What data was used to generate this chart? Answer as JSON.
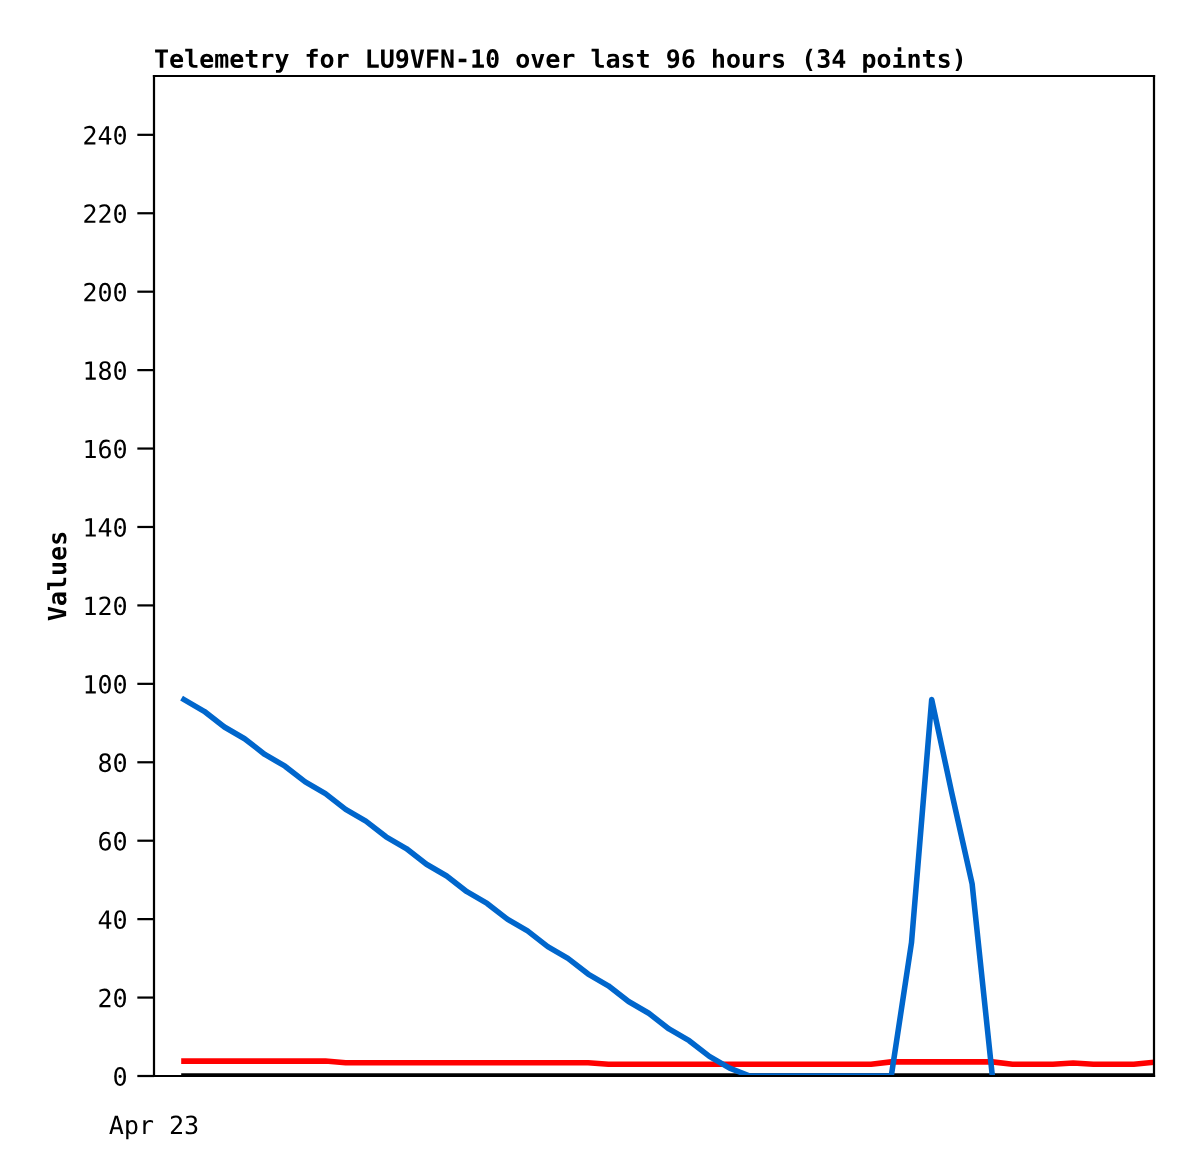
{
  "chart_data": {
    "type": "line",
    "title": "Telemetry for LU9VFN-10 over last 96 hours (34 points)",
    "ylabel": "Values",
    "annotations": [
      "Apr 23"
    ],
    "categories": [
      null,
      null,
      null,
      null,
      null,
      null,
      null,
      null,
      null,
      null,
      null,
      null,
      null,
      null,
      null,
      null,
      null,
      null,
      null,
      null,
      null,
      null,
      null,
      null,
      null,
      null,
      null,
      null,
      null,
      null,
      null,
      null,
      null,
      null,
      null,
      null,
      null,
      null,
      null,
      null,
      null,
      null,
      null,
      null,
      null,
      null,
      null,
      null,
      null
    ],
    "ylim": [
      0,
      255
    ],
    "yticks": [
      0,
      20,
      40,
      60,
      80,
      100,
      120,
      140,
      160,
      180,
      200,
      220,
      240
    ],
    "grid": false,
    "legend": false,
    "marker": "none",
    "line_style": "solid",
    "series": [
      {
        "color": "#ff0000",
        "values": [
          3.8,
          3.8,
          3.8,
          3.8,
          3.8,
          3.8,
          3.8,
          3.8,
          3.4,
          3.4,
          3.4,
          3.4,
          3.4,
          3.4,
          3.4,
          3.4,
          3.4,
          3.4,
          3.4,
          3.4,
          3.4,
          3.0,
          3.0,
          3.0,
          3.0,
          3.0,
          3.0,
          3.0,
          3.0,
          3.0,
          3.0,
          3.0,
          3.0,
          3.0,
          3.0,
          3.6,
          3.6,
          3.6,
          3.6,
          3.6,
          3.6,
          3.0,
          3.0,
          3.0,
          3.3,
          3.0,
          3.0,
          3.0,
          3.5
        ]
      },
      {
        "color": "#000000",
        "values": [
          0,
          0,
          0,
          0,
          0,
          0,
          0,
          0,
          0,
          0,
          0,
          0,
          0,
          0,
          0,
          0,
          0,
          0,
          0,
          0,
          0,
          0,
          0,
          0,
          0,
          0,
          0,
          0,
          0,
          0,
          0,
          0,
          0,
          0,
          0,
          0,
          0,
          0,
          0,
          0,
          0,
          0,
          0,
          0,
          0,
          0,
          0,
          0,
          0
        ]
      },
      {
        "color": "#0066cc",
        "values": [
          96,
          93,
          89,
          86,
          82,
          79,
          75,
          72,
          68,
          65,
          61,
          58,
          54,
          51,
          47,
          44,
          40,
          37,
          33,
          30,
          26,
          23,
          19,
          16,
          12,
          9,
          5,
          2,
          0,
          0,
          0,
          0,
          0,
          0,
          0,
          0,
          34,
          96,
          72,
          49,
          0,
          null,
          null,
          null,
          null,
          null,
          null,
          null,
          null
        ]
      }
    ]
  }
}
